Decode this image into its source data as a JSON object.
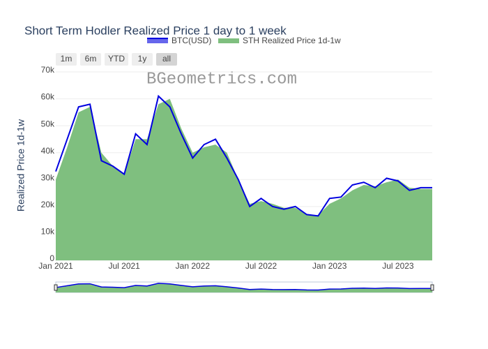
{
  "chart_data": {
    "type": "area_line",
    "title": "Short Term Hodler Realized Price 1 day to 1 week",
    "y_label": "Realized Price 1d-1w",
    "watermark": "BGeometrics.com",
    "range_buttons": [
      "1m",
      "6m",
      "YTD",
      "1y",
      "all"
    ],
    "x": [
      "2021-01",
      "2021-02",
      "2021-03",
      "2021-04",
      "2021-05",
      "2021-06",
      "2021-07",
      "2021-08",
      "2021-09",
      "2021-10",
      "2021-11",
      "2021-12",
      "2022-01",
      "2022-02",
      "2022-03",
      "2022-04",
      "2022-05",
      "2022-06",
      "2022-07",
      "2022-08",
      "2022-09",
      "2022-10",
      "2022-11",
      "2022-12",
      "2023-01",
      "2023-02",
      "2023-03",
      "2023-04",
      "2023-05",
      "2023-06",
      "2023-07",
      "2023-08",
      "2023-09",
      "2023-10"
    ],
    "series": [
      {
        "name": "STH Realized Price 1d-1w",
        "color": "#7fbf7f",
        "fill": true,
        "values": [
          30000,
          42000,
          55000,
          57000,
          40000,
          35000,
          32000,
          45000,
          45000,
          58000,
          60000,
          49000,
          40000,
          42000,
          43000,
          40000,
          30000,
          21000,
          22000,
          21000,
          19500,
          19500,
          17000,
          16800,
          21000,
          23000,
          26000,
          28000,
          27500,
          29000,
          30000,
          27000,
          26500,
          26500
        ]
      },
      {
        "name": "BTC(USD)",
        "color": "#0000e0",
        "fill": false,
        "values": [
          33000,
          45000,
          57000,
          58000,
          37000,
          35000,
          32000,
          47000,
          43000,
          61000,
          57000,
          47000,
          38000,
          43000,
          45000,
          38000,
          30000,
          20000,
          23000,
          20000,
          19000,
          20000,
          17000,
          16500,
          23000,
          23500,
          28000,
          29000,
          27000,
          30500,
          29500,
          26000,
          27000,
          27000
        ]
      }
    ],
    "xlim": [
      "2021-01",
      "2023-10"
    ],
    "xticks": [
      {
        "value": "2021-01",
        "label": "Jan 2021"
      },
      {
        "value": "2021-07",
        "label": "Jul 2021"
      },
      {
        "value": "2022-01",
        "label": "Jan 2022"
      },
      {
        "value": "2022-07",
        "label": "Jul 2022"
      },
      {
        "value": "2023-01",
        "label": "Jan 2023"
      },
      {
        "value": "2023-07",
        "label": "Jul 2023"
      }
    ],
    "ylim": [
      0,
      70000
    ],
    "yticks": [
      0,
      {
        "value": 10000,
        "label": "10k"
      },
      {
        "value": 20000,
        "label": "20k"
      },
      {
        "value": 30000,
        "label": "30k"
      },
      {
        "value": 40000,
        "label": "40k"
      },
      {
        "value": 50000,
        "label": "50k"
      },
      {
        "value": 60000,
        "label": "60k"
      },
      {
        "value": 70000,
        "label": "70k"
      }
    ],
    "grid": true
  }
}
